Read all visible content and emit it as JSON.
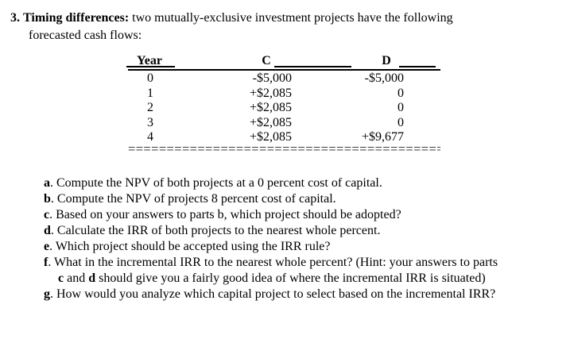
{
  "document": {
    "background": "#ffffff",
    "text_color": "#000000",
    "rule_color": "#000000"
  },
  "title": {
    "number": "3.",
    "emphasis": "Timing differences:",
    "rest": " two mutually-exclusive investment projects have the following",
    "line2": "forecasted cash flows:"
  },
  "table": {
    "headers": {
      "year": "Year",
      "c": "C",
      "d": "D"
    },
    "rows": [
      {
        "year": "0",
        "c": "-$5,000",
        "d": "-$5,000"
      },
      {
        "year": "1",
        "c": "+$2,085",
        "d": "0"
      },
      {
        "year": "2",
        "c": "+$2,085",
        "d": "0"
      },
      {
        "year": "3",
        "c": "+$2,085",
        "d": "0"
      },
      {
        "year": "4",
        "c": "+$2,085",
        "d": "+$9,677"
      }
    ],
    "double_rule": "============================================================"
  },
  "questions": {
    "a": {
      "label": "a",
      "text": ". Compute the NPV of both projects at a 0 percent cost of capital."
    },
    "b": {
      "label": "b",
      "text": ". Compute the NPV of projects 8 percent cost of capital."
    },
    "c": {
      "label": "c",
      "text": ". Based on your answers to parts b, which project should be adopted?"
    },
    "d": {
      "label": "d",
      "text": ". Calculate the IRR of both projects to the nearest whole percent."
    },
    "e": {
      "label": "e",
      "text": ". Which project should be accepted using the IRR rule?"
    },
    "f": {
      "label": "f",
      "text": ". What in the incremental IRR to the nearest whole percent? (Hint: your answers to parts"
    },
    "f_cont": {
      "bold1": "c",
      "mid": " and ",
      "bold2": "d",
      "rest": " should give you a fairly good idea of where the incremental IRR is situated)"
    },
    "g": {
      "label": "g",
      "text": ". How would you analyze which capital project to select based on the incremental IRR?"
    }
  }
}
